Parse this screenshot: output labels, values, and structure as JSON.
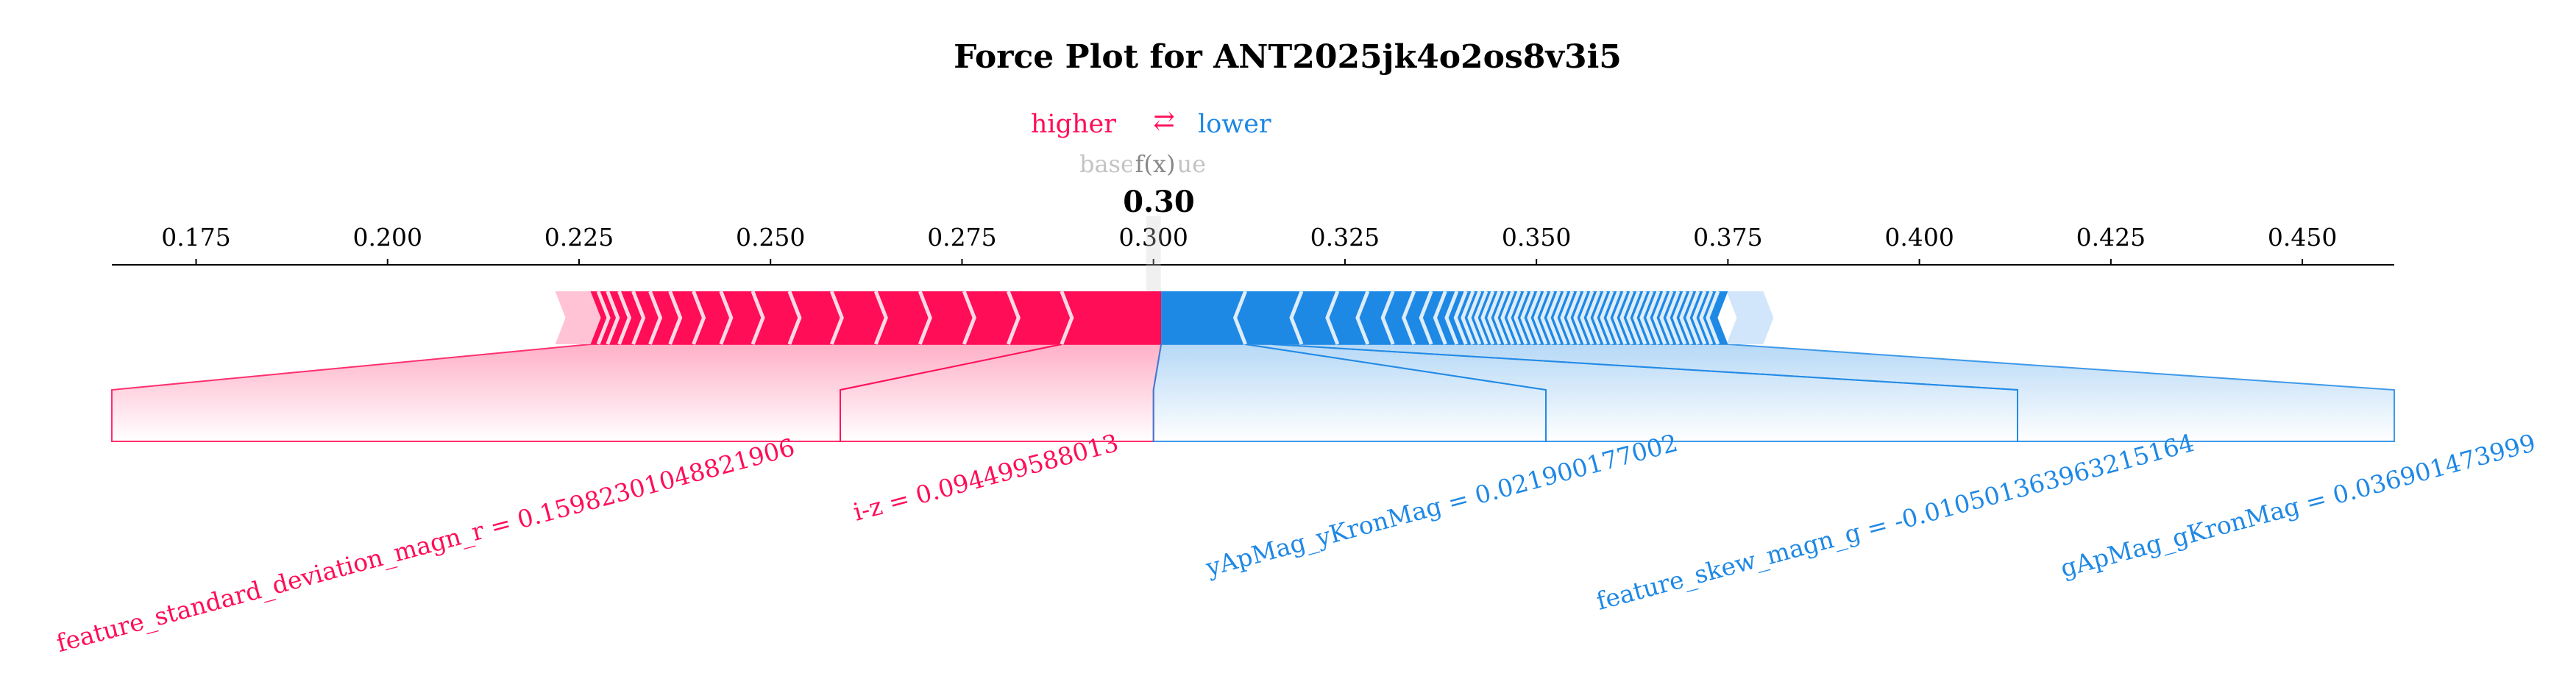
{
  "chart_data": {
    "type": "force",
    "title": "Force Plot for ANT2025jk4o2os8v3i5",
    "legend": {
      "higher": "higher",
      "arrow": "⇄",
      "lower": "lower"
    },
    "base_value_label": "base value",
    "fx_label": "f(x)",
    "output_value": 0.3,
    "output_value_text": "0.30",
    "xlim": [
      0.164,
      0.462
    ],
    "ticks": [
      0.175,
      0.2,
      0.225,
      0.25,
      0.275,
      0.3,
      0.325,
      0.35,
      0.375,
      0.4,
      0.425,
      0.45
    ],
    "tick_labels": [
      "0.175",
      "0.200",
      "0.225",
      "0.250",
      "0.275",
      "0.300",
      "0.325",
      "0.350",
      "0.375",
      "0.400",
      "0.425",
      "0.450"
    ],
    "positive_range": [
      0.2265,
      0.301
    ],
    "negative_range": [
      0.301,
      0.375
    ],
    "positive_features": [
      {
        "label": "feature_standard_deviation_magn_r = 0.15982301048821906",
        "start": 0.288,
        "end": 0.301
      },
      {
        "label": "i-z = 0.094499588013",
        "start": 0.2265,
        "end": 0.288
      }
    ],
    "negative_features": [
      {
        "label": "yApMag_yKronMag = 0.021900177002",
        "start": 0.301,
        "end": 0.312
      },
      {
        "label": "feature_skew_magn_g = -0.010501363963215164",
        "start": 0.312,
        "end": 0.3155
      },
      {
        "label": "gApMag_gKronMag = 0.036901473999",
        "start": 0.3155,
        "end": 0.375
      }
    ],
    "colors": {
      "positive": "#ff0d57",
      "negative": "#1e88e5",
      "positive_light": "#ffc3d5",
      "negative_light": "#d1e6fa",
      "base": "#888888"
    }
  }
}
